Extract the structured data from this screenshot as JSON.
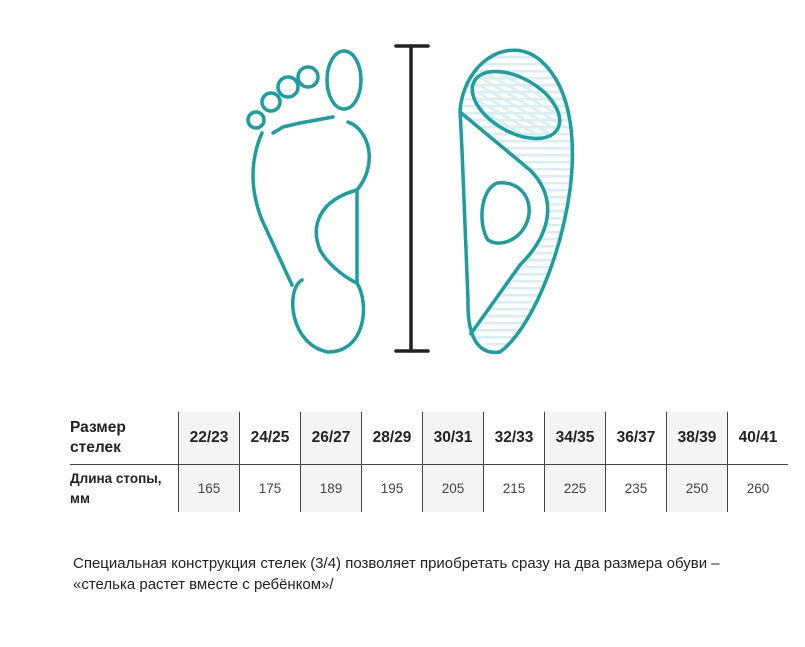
{
  "table": {
    "row_labels": [
      "Размер стелек",
      "Длина стопы, мм"
    ],
    "sizes": [
      "22/23",
      "24/25",
      "26/27",
      "28/29",
      "30/31",
      "32/33",
      "34/35",
      "36/37",
      "38/39",
      "40/41"
    ],
    "lengths_mm": [
      "165",
      "175",
      "189",
      "195",
      "205",
      "215",
      "225",
      "235",
      "250",
      "260"
    ]
  },
  "note": "Специальная конструкция стелек (3/4) позволяет приобретать сразу на два размера обуви – «стелька растет вместе с ребёнком»/",
  "colors": {
    "accent": "#1a9e9e",
    "ruler": "#222222",
    "shade": "#f4f4f4"
  }
}
